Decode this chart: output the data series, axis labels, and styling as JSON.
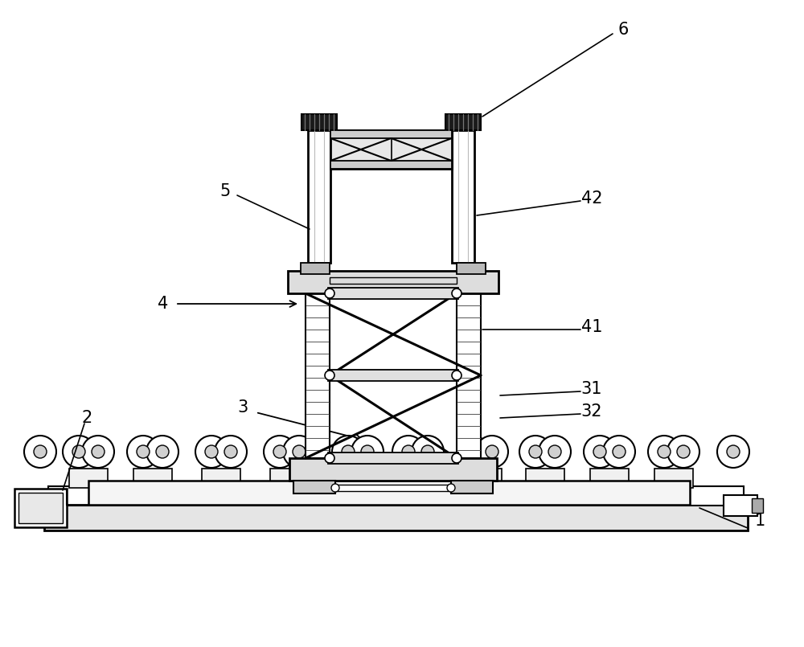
{
  "bg_color": "#ffffff",
  "lc": "#000000",
  "figsize": [
    10.0,
    8.05
  ],
  "dpi": 100,
  "label_fontsize": 15
}
